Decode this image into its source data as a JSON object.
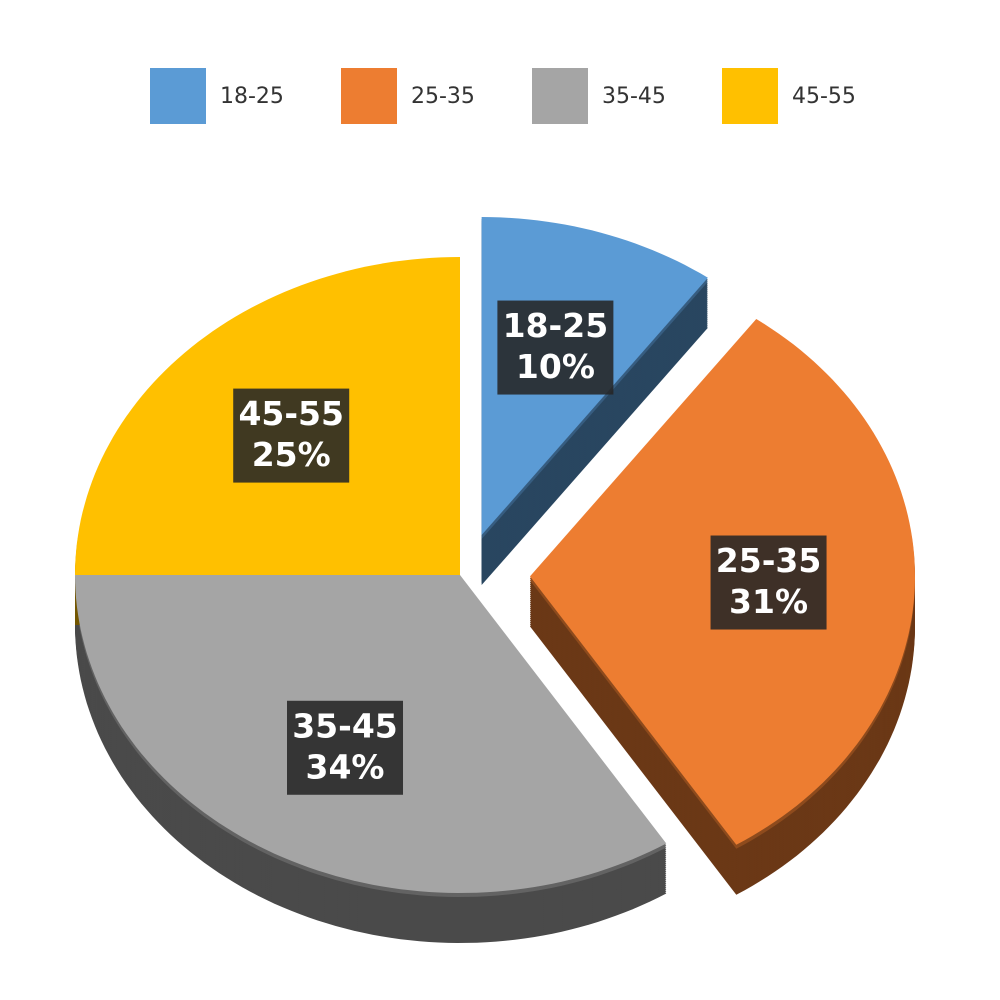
{
  "chart_data": {
    "type": "pie",
    "categories": [
      "18-25",
      "25-35",
      "35-45",
      "45-55"
    ],
    "values": [
      10,
      31,
      34,
      25
    ],
    "value_labels": [
      "10%",
      "31%",
      "34%",
      "25%"
    ],
    "colors": [
      "#5b9bd5",
      "#ed7d31",
      "#a5a5a5",
      "#ffc000"
    ],
    "explode": [
      true,
      true,
      false,
      false
    ],
    "legend": "top"
  }
}
